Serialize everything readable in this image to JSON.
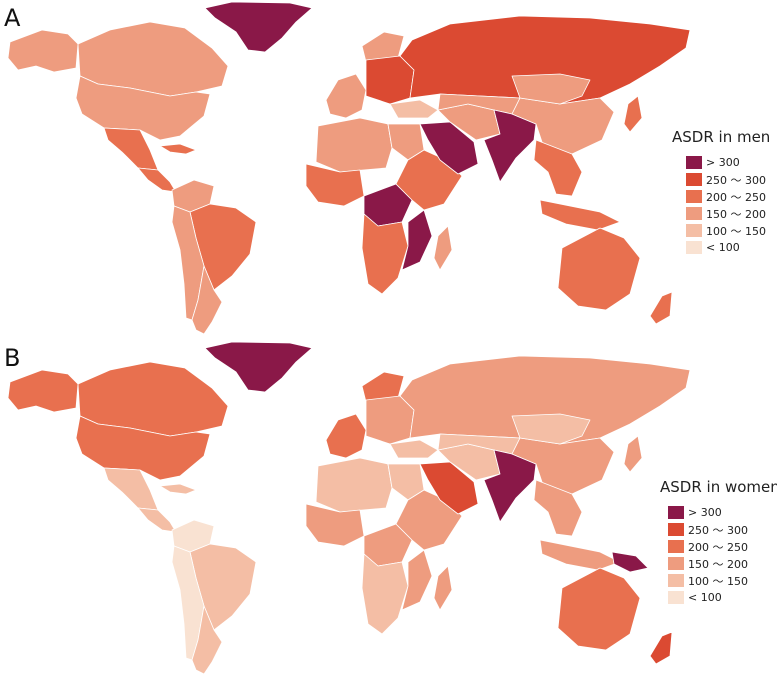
{
  "colors": {
    "gt300": "#8a1848",
    "r250_300": "#db4a32",
    "r200_250": "#e8704f",
    "r150_200": "#ee9c7f",
    "r100_150": "#f4bea5",
    "lt100": "#f9e2d2"
  },
  "panels": [
    {
      "letter": "A",
      "legend": {
        "title": "ASDR in men",
        "items": [
          {
            "label": "> 300",
            "color": "#8a1848"
          },
          {
            "label": "250 ～ 300",
            "color": "#db4a32"
          },
          {
            "label": "200 ～ 250",
            "color": "#e8704f"
          },
          {
            "label": "150 ～ 200",
            "color": "#ee9c7f"
          },
          {
            "label": "100 ～ 150",
            "color": "#f4bea5"
          },
          {
            "label": "< 100",
            "color": "#f9e2d2"
          }
        ]
      }
    },
    {
      "letter": "B",
      "legend": {
        "title": "ASDR in women",
        "items": [
          {
            "label": "> 300",
            "color": "#8a1848"
          },
          {
            "label": "250 ～ 300",
            "color": "#db4a32"
          },
          {
            "label": "200 ～ 250",
            "color": "#e8704f"
          },
          {
            "label": "150 ～ 200",
            "color": "#ee9c7f"
          },
          {
            "label": "100 ～ 150",
            "color": "#f4bea5"
          },
          {
            "label": "< 100",
            "color": "#f9e2d2"
          }
        ]
      }
    }
  ],
  "region_classes": {
    "men": {
      "greenland": "gt300",
      "canada": "r150_200",
      "alaska": "r150_200",
      "usa": "r150_200",
      "mexico": "r200_250",
      "central-america": "r200_250",
      "caribbean": "r200_250",
      "colombia-venezuela": "r150_200",
      "brazil": "r200_250",
      "andes": "r150_200",
      "southern-cone": "r150_200",
      "western-europe": "r150_200",
      "scandinavia": "r150_200",
      "eastern-europe": "r250_300",
      "russia": "r250_300",
      "turkey": "r100_150",
      "north-africa": "r150_200",
      "egypt": "r150_200",
      "west-africa": "r200_250",
      "central-africa": "gt300",
      "east-africa": "r200_250",
      "southern-africa": "r200_250",
      "mozambique": "gt300",
      "madagascar": "r150_200",
      "arabia": "gt300",
      "iran": "r150_200",
      "central-asia": "r150_200",
      "india": "gt300",
      "china": "r150_200",
      "mongolia": "r150_200",
      "southeast-asia": "r200_250",
      "japan": "r200_250",
      "indonesia": "r200_250",
      "australia": "r200_250",
      "new-zealand": "r200_250"
    },
    "women": {
      "greenland": "gt300",
      "canada": "r200_250",
      "alaska": "r200_250",
      "usa": "r200_250",
      "mexico": "r100_150",
      "central-america": "r100_150",
      "caribbean": "r100_150",
      "colombia-venezuela": "lt100",
      "brazil": "r100_150",
      "andes": "lt100",
      "southern-cone": "r100_150",
      "western-europe": "r200_250",
      "scandinavia": "r200_250",
      "eastern-europe": "r150_200",
      "russia": "r150_200",
      "turkey": "r100_150",
      "north-africa": "r100_150",
      "egypt": "r100_150",
      "west-africa": "r150_200",
      "central-africa": "r150_200",
      "east-africa": "r150_200",
      "southern-africa": "r100_150",
      "mozambique": "r150_200",
      "madagascar": "r150_200",
      "arabia": "r250_300",
      "iran": "r100_150",
      "central-asia": "r100_150",
      "india": "gt300",
      "china": "r150_200",
      "mongolia": "r100_150",
      "southeast-asia": "r150_200",
      "japan": "r150_200",
      "indonesia": "r150_200",
      "papua-new-guinea": "gt300",
      "australia": "r200_250",
      "new-zealand": "r250_300"
    }
  }
}
